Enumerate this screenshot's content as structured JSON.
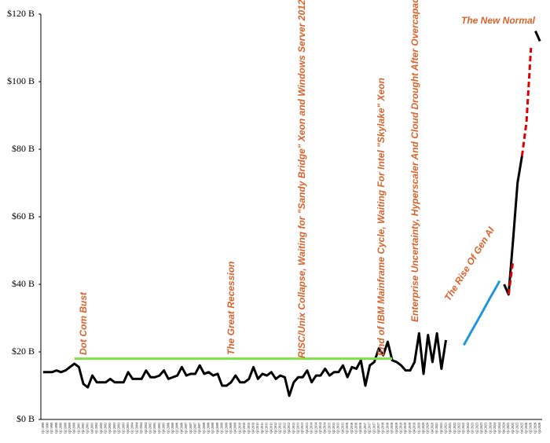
{
  "chart_data": {
    "type": "line",
    "categories": [
      "Q1 1999",
      "Q2 1999",
      "Q3 1999",
      "Q4 1999",
      "Q1 2000",
      "Q2 2000",
      "Q3 2000",
      "Q4 2000",
      "Q1 2001",
      "Q2 2001",
      "Q3 2001",
      "Q4 2001",
      "Q1 2002",
      "Q2 2002",
      "Q3 2002",
      "Q4 2002",
      "Q1 2003",
      "Q2 2003",
      "Q3 2003",
      "Q4 2003",
      "Q1 2004",
      "Q2 2004",
      "Q3 2004",
      "Q4 2004",
      "Q1 2005",
      "Q2 2005",
      "Q3 2005",
      "Q4 2005",
      "Q1 2006",
      "Q2 2006",
      "Q3 2006",
      "Q4 2006",
      "Q1 2007",
      "Q2 2007",
      "Q3 2007",
      "Q4 2007",
      "Q1 2008",
      "Q2 2008",
      "Q3 2008",
      "Q4 2008",
      "Q1 2009",
      "Q2 2009",
      "Q3 2009",
      "Q4 2009",
      "Q1 2010",
      "Q2 2010",
      "Q3 2010",
      "Q4 2010",
      "Q1 2011",
      "Q2 2011",
      "Q3 2011",
      "Q4 2011",
      "Q1 2012",
      "Q2 2012",
      "Q3 2012",
      "Q4 2012",
      "Q1 2013",
      "Q2 2013",
      "Q3 2013",
      "Q4 2013",
      "Q1 2014",
      "Q2 2014",
      "Q3 2014",
      "Q4 2014",
      "Q1 2015",
      "Q2 2015",
      "Q3 2015",
      "Q4 2015",
      "Q1 2016",
      "Q2 2016",
      "Q3 2016",
      "Q4 2016",
      "Q1 2017",
      "Q2 2017",
      "Q3 2017",
      "Q4 2017",
      "Q1 2018",
      "Q2 2018",
      "Q3 2018",
      "Q4 2018",
      "Q1 2019",
      "Q2 2019",
      "Q3 2019",
      "Q4 2019",
      "Q1 2020",
      "Q2 2020",
      "Q3 2020",
      "Q4 2020",
      "Q1 2021",
      "Q2 2021",
      "Q3 2021",
      "Q4 2021",
      "Q1 2022",
      "Q2 2022",
      "Q3 2022",
      "Q4 2022",
      "Q1 2023",
      "Q2 2023",
      "Q3 2023",
      "Q4 2023",
      "Q1 2024",
      "Q2 2024",
      "Q3 2024",
      "Q4 2024",
      "Q1 2025",
      "Q2 2025",
      "Q3 2025",
      "Q4 2025",
      "Q1 2026",
      "Q2 2026",
      "Q3 2026",
      "Q4 2026"
    ],
    "series": [
      {
        "color": "#000000",
        "dashed": false,
        "values": [
          14,
          14,
          14,
          14.5,
          14,
          14.5,
          15.5,
          16.5,
          15.5,
          10.5,
          9.5,
          13,
          11,
          11,
          11,
          12,
          11,
          11,
          11,
          14,
          12,
          12,
          12,
          14.5,
          12.5,
          12.5,
          13,
          14.5,
          12,
          12.5,
          13,
          15.5,
          13,
          13.5,
          13.5,
          16,
          13.5,
          14,
          13,
          13.5,
          10,
          10,
          11,
          13,
          11,
          11,
          12,
          15.5,
          12,
          13.5,
          13,
          14,
          12,
          13,
          12.5,
          7,
          11,
          12.5,
          12.5,
          14.5,
          11,
          13,
          13,
          15,
          13,
          14,
          14,
          16,
          12.5,
          15.5,
          15,
          17.5,
          10,
          16,
          17,
          21,
          19,
          23,
          17.5,
          17,
          16,
          14.5,
          14.5,
          17,
          25.5,
          13.5,
          25,
          17,
          25.5,
          15,
          23.5,
          null,
          null,
          null,
          null,
          null,
          null,
          null,
          null,
          null,
          null,
          null,
          null,
          40,
          37,
          53,
          70,
          78,
          null,
          null,
          115,
          112
        ]
      },
      {
        "color": "#2196db",
        "dashed": false,
        "values": [
          null,
          null,
          null,
          null,
          null,
          null,
          null,
          null,
          null,
          null,
          null,
          null,
          null,
          null,
          null,
          null,
          null,
          null,
          null,
          null,
          null,
          null,
          null,
          null,
          null,
          null,
          null,
          null,
          null,
          null,
          null,
          null,
          null,
          null,
          null,
          null,
          null,
          null,
          null,
          null,
          null,
          null,
          null,
          null,
          null,
          null,
          null,
          null,
          null,
          null,
          null,
          null,
          null,
          null,
          null,
          null,
          null,
          null,
          null,
          null,
          null,
          null,
          null,
          null,
          null,
          null,
          null,
          null,
          null,
          null,
          null,
          null,
          null,
          null,
          null,
          null,
          null,
          null,
          null,
          null,
          null,
          null,
          null,
          null,
          null,
          null,
          null,
          null,
          null,
          null,
          null,
          null,
          null,
          null,
          22,
          24.4,
          26.8,
          29.1,
          31.5,
          33.9,
          36.3,
          38.6,
          41,
          null,
          null,
          null,
          null,
          null,
          null,
          null,
          null,
          null
        ]
      },
      {
        "color": "#e00000",
        "dashed": true,
        "values": [
          null,
          null,
          null,
          null,
          null,
          null,
          null,
          null,
          null,
          null,
          null,
          null,
          null,
          null,
          null,
          null,
          null,
          null,
          null,
          null,
          null,
          null,
          null,
          null,
          null,
          null,
          null,
          null,
          null,
          null,
          null,
          null,
          null,
          null,
          null,
          null,
          null,
          null,
          null,
          null,
          null,
          null,
          null,
          null,
          null,
          null,
          null,
          null,
          null,
          null,
          null,
          null,
          null,
          null,
          null,
          null,
          null,
          null,
          null,
          null,
          null,
          null,
          null,
          null,
          null,
          null,
          null,
          null,
          null,
          null,
          null,
          null,
          null,
          null,
          null,
          null,
          null,
          null,
          null,
          null,
          null,
          null,
          null,
          null,
          null,
          null,
          null,
          null,
          null,
          null,
          null,
          null,
          null,
          null,
          null,
          null,
          null,
          null,
          null,
          null,
          null,
          null,
          null,
          null,
          37,
          47,
          null,
          78,
          88,
          110,
          null,
          null
        ]
      },
      {
        "color": "#7fe04a",
        "dashed": false,
        "values": [
          null,
          null,
          null,
          null,
          null,
          null,
          null,
          18,
          18,
          18,
          18,
          18,
          18,
          18,
          18,
          18,
          18,
          18,
          18,
          18,
          18,
          18,
          18,
          18,
          18,
          18,
          18,
          18,
          18,
          18,
          18,
          18,
          18,
          18,
          18,
          18,
          18,
          18,
          18,
          18,
          18,
          18,
          18,
          18,
          18,
          18,
          18,
          18,
          18,
          18,
          18,
          18,
          18,
          18,
          18,
          18,
          18,
          18,
          18,
          18,
          18,
          18,
          18,
          18,
          18,
          18,
          18,
          18,
          18,
          18,
          18,
          18,
          18,
          18,
          18,
          18,
          18,
          18,
          18,
          null,
          null,
          null,
          null,
          null,
          null,
          null,
          null,
          null,
          null,
          null,
          null,
          null,
          null,
          null,
          null,
          null,
          null,
          null,
          null,
          null,
          null,
          null,
          null,
          null,
          null,
          null,
          null,
          null,
          null,
          null,
          null,
          null
        ]
      }
    ],
    "annotations": [
      "Dot Com Bust",
      "The Great Recession",
      "RISC/Unix Collapse, Waiting for \"Sandy Bridge\" Xeon and Windows Server 2012",
      "End of IBM Mainframe Cycle, Waiting For Intel \"Skylake\" Xeon",
      "Enterprise Uncertainty, Hyperscaler And Cloud Drought After Overcapacity",
      "The Rise Of Gen AI",
      "The New Normal"
    ],
    "ylim": [
      0,
      120
    ],
    "yticks": [
      {
        "value": 0,
        "label": "$0 B"
      },
      {
        "value": 20,
        "label": "$20 B"
      },
      {
        "value": 40,
        "label": "$40 B"
      },
      {
        "value": 60,
        "label": "$60 B"
      },
      {
        "value": 80,
        "label": "$80 B"
      },
      {
        "value": 100,
        "label": "$100 B"
      },
      {
        "value": 120,
        "label": "$120 B"
      }
    ],
    "grid": false
  }
}
